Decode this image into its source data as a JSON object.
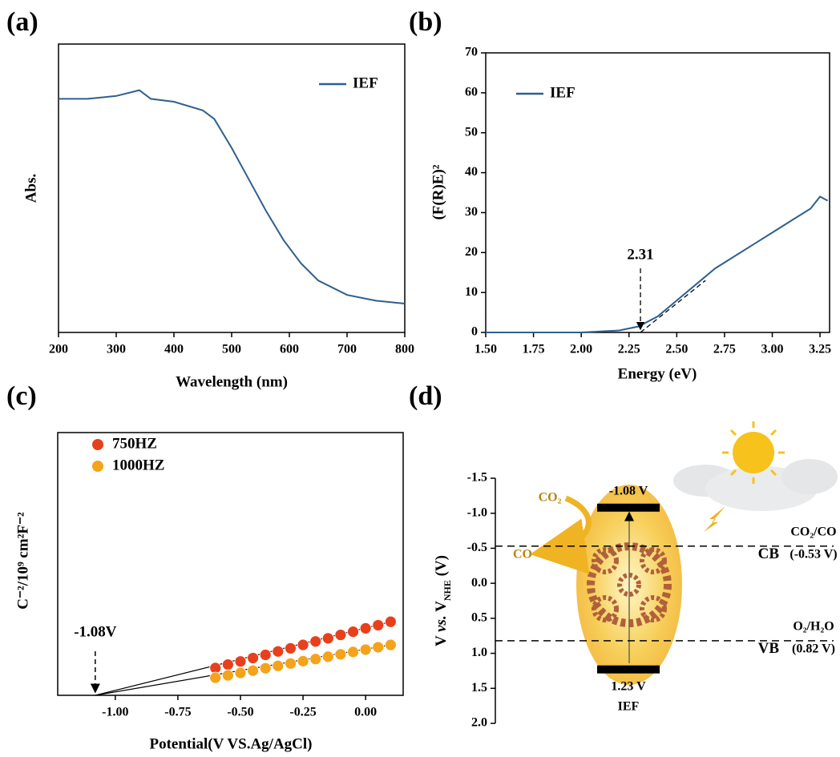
{
  "chart_data": [
    {
      "type": "line",
      "panel": "(a)",
      "xlabel": "Wavelength (nm)",
      "ylabel": "Abs.",
      "xlim": [
        200,
        800
      ],
      "xticks": [
        200,
        300,
        400,
        500,
        600,
        700,
        800
      ],
      "ylim": [
        0,
        1
      ],
      "x": [
        200,
        250,
        300,
        340,
        360,
        400,
        450,
        470,
        500,
        530,
        560,
        590,
        620,
        650,
        700,
        750,
        800
      ],
      "series": [
        {
          "name": "IEF",
          "color": "#2e5f8f",
          "values": [
            0.81,
            0.81,
            0.82,
            0.84,
            0.81,
            0.8,
            0.77,
            0.74,
            0.64,
            0.53,
            0.42,
            0.32,
            0.24,
            0.18,
            0.13,
            0.11,
            0.1
          ]
        }
      ]
    },
    {
      "type": "line",
      "panel": "(b)",
      "xlabel": "Energy (eV)",
      "ylabel": "(F(R)E)²",
      "xlim": [
        1.5,
        3.3
      ],
      "xticks": [
        {
          "value": 1.5,
          "label": "1.50"
        },
        1.75,
        {
          "value": 2,
          "label": "2.00"
        },
        2.25,
        {
          "value": 2.5,
          "label": "2.50"
        },
        2.75,
        {
          "value": 3,
          "label": "3.00"
        },
        3.25
      ],
      "ylim": [
        0,
        70
      ],
      "yticks": [
        0,
        10,
        20,
        30,
        40,
        50,
        60,
        70
      ],
      "x": [
        1.5,
        2.0,
        2.2,
        2.3,
        2.4,
        2.5,
        2.6,
        2.7,
        2.8,
        2.9,
        3.0,
        3.1,
        3.2,
        3.25,
        3.29
      ],
      "series": [
        {
          "name": "IEF",
          "color": "#2e5f8f",
          "values": [
            0,
            0,
            0.5,
            1.5,
            4,
            8,
            12,
            16,
            19,
            22,
            25,
            28,
            31,
            34,
            33
          ]
        }
      ],
      "fit_line": {
        "x": [
          2.31,
          2.65
        ],
        "values": [
          0,
          13
        ]
      },
      "annotations": [
        {
          "text": "2.31",
          "x": 2.31
        }
      ]
    },
    {
      "type": "scatter",
      "panel": "(c)",
      "xlabel": "Potential(V VS.Ag/AgCl)",
      "ylabel": "C⁻²/10⁹ cm²F⁻²",
      "xlim": [
        -1.23,
        0.15
      ],
      "xticks": [
        {
          "value": -1,
          "label": "-1.00"
        },
        -0.75,
        {
          "value": -0.5,
          "label": "-0.50"
        },
        -0.25,
        {
          "value": 0,
          "label": "0.00"
        }
      ],
      "ylim": [
        0,
        1
      ],
      "x": [
        -0.6,
        -0.55,
        -0.5,
        -0.45,
        -0.4,
        -0.35,
        -0.3,
        -0.25,
        -0.2,
        -0.15,
        -0.1,
        -0.05,
        0,
        0.05,
        0.1
      ],
      "series": [
        {
          "name": "750HZ",
          "color": "#e8401c",
          "values": [
            0.104,
            0.117,
            0.129,
            0.142,
            0.154,
            0.167,
            0.179,
            0.192,
            0.205,
            0.217,
            0.23,
            0.242,
            0.255,
            0.267,
            0.28
          ]
        },
        {
          "name": "1000HZ",
          "color": "#f5a31a",
          "values": [
            0.067,
            0.076,
            0.085,
            0.094,
            0.103,
            0.112,
            0.121,
            0.13,
            0.138,
            0.147,
            0.156,
            0.165,
            0.174,
            0.183,
            0.192
          ]
        }
      ],
      "annotations": [
        {
          "text": "-1.08V",
          "x": -1.08
        }
      ]
    },
    {
      "type": "band",
      "panel": "(d)",
      "ylabel": [
        "V ",
        "vs.",
        " V",
        "NHE",
        " (V)"
      ],
      "ylim": [
        -1.5,
        2
      ],
      "y_inverted": true,
      "yticks": [
        -1.5,
        {
          "value": -1,
          "label": "-1.0"
        },
        -0.5,
        {
          "value": 0,
          "label": "0.0"
        },
        0.5,
        {
          "value": 1,
          "label": "1.0"
        },
        1.5,
        {
          "value": 2,
          "label": "2.0"
        }
      ],
      "material": "IEF",
      "levels": [
        {
          "name": "CB",
          "value": -1.08,
          "value_label": "-1.08 V"
        },
        {
          "name": "VB",
          "value": 1.23,
          "value_label": "1.23 V"
        }
      ],
      "redox": [
        {
          "label": "CO₂/CO",
          "value": -0.53,
          "value_label": "(-0.53 V)",
          "band": "CB"
        },
        {
          "label": "O₂/H₂O",
          "value": 0.82,
          "value_label": "(0.82 V)",
          "band": "VB"
        }
      ],
      "species": [
        "CO₂",
        "CO"
      ]
    }
  ]
}
